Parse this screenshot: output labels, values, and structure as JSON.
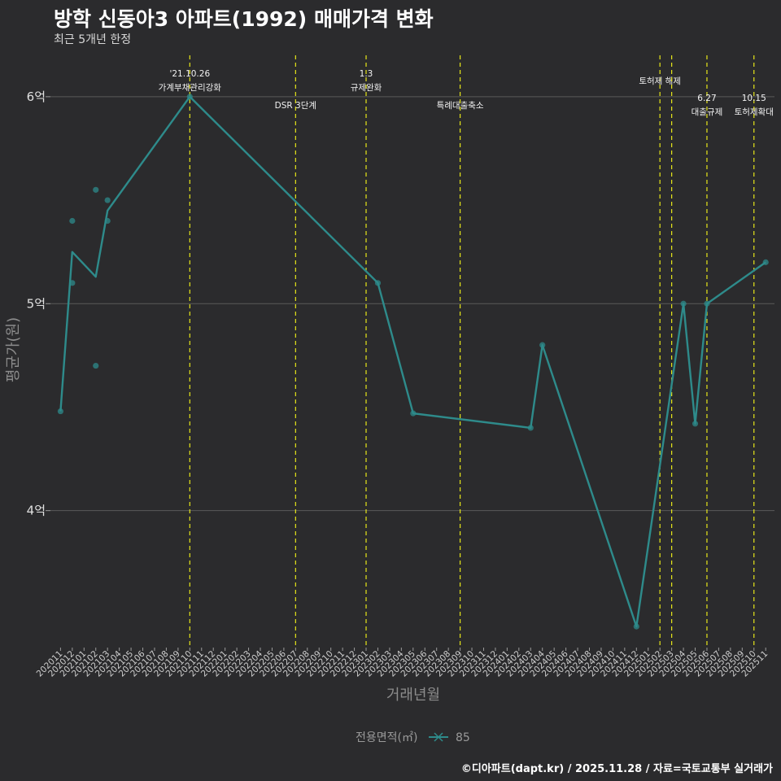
{
  "header": {
    "title": "방학 신동아3 아파트(1992) 매매가격 변화",
    "subtitle": "최근 5개년 한정"
  },
  "footer": {
    "caption": "©디아파트(dapt.kr) / 2025.11.28 / 자료=국토교통부 실거래가"
  },
  "colors": {
    "background": "#2b2b2d",
    "grid": "#5a5a5a",
    "series": "#2e8b8b",
    "event_line": "#e6e619"
  },
  "chart_data": {
    "type": "line",
    "title": "방학 신동아3 아파트(1992) 매매가격 변화",
    "subtitle": "최근 5개년 한정",
    "xlabel": "거래년월",
    "ylabel": "평균가(원)",
    "x_categories": [
      "202011",
      "202012",
      "202101",
      "202102",
      "202103",
      "202104",
      "202105",
      "202106",
      "202107",
      "202108",
      "202109",
      "202110",
      "202111",
      "202112",
      "202201",
      "202202",
      "202203",
      "202204",
      "202205",
      "202206",
      "202207",
      "202208",
      "202209",
      "202210",
      "202211",
      "202212",
      "202301",
      "202302",
      "202303",
      "202304",
      "202305",
      "202306",
      "202307",
      "202308",
      "202309",
      "202310",
      "202311",
      "202312",
      "202401",
      "202402",
      "202403",
      "202404",
      "202405",
      "202406",
      "202407",
      "202408",
      "202409",
      "202410",
      "202411",
      "202412",
      "202501",
      "202502",
      "202503",
      "202504",
      "202505",
      "202506",
      "202507",
      "202508",
      "202509",
      "202510",
      "202511"
    ],
    "y_ticks": [
      {
        "value": 400000000,
        "label": "4억"
      },
      {
        "value": 500000000,
        "label": "5억"
      },
      {
        "value": 600000000,
        "label": "6억"
      }
    ],
    "ylim": [
      335000000,
      620000000
    ],
    "legend": {
      "title": "전용면적(㎡)",
      "entries": [
        "85"
      ]
    },
    "series": [
      {
        "name": "85",
        "line": [
          {
            "x": "202011",
            "y": 448000000
          },
          {
            "x": "202012",
            "y": 525000000
          },
          {
            "x": "202102",
            "y": 513000000
          },
          {
            "x": "202103",
            "y": 545000000
          },
          {
            "x": "202110",
            "y": 600000000
          },
          {
            "x": "202302",
            "y": 510000000
          },
          {
            "x": "202305",
            "y": 447000000
          },
          {
            "x": "202403",
            "y": 440000000
          },
          {
            "x": "202404",
            "y": 480000000
          },
          {
            "x": "202412",
            "y": 344000000
          },
          {
            "x": "202504",
            "y": 500000000
          },
          {
            "x": "202505",
            "y": 442000000
          },
          {
            "x": "202506",
            "y": 500000000
          },
          {
            "x": "202511",
            "y": 520000000
          }
        ],
        "points": [
          {
            "x": "202011",
            "y": 448000000
          },
          {
            "x": "202012",
            "y": 540000000
          },
          {
            "x": "202012",
            "y": 510000000
          },
          {
            "x": "202102",
            "y": 555000000
          },
          {
            "x": "202102",
            "y": 470000000
          },
          {
            "x": "202103",
            "y": 550000000
          },
          {
            "x": "202103",
            "y": 540000000
          },
          {
            "x": "202110",
            "y": 600000000
          },
          {
            "x": "202302",
            "y": 510000000
          },
          {
            "x": "202305",
            "y": 447000000
          },
          {
            "x": "202403",
            "y": 440000000
          },
          {
            "x": "202404",
            "y": 480000000
          },
          {
            "x": "202412",
            "y": 344000000
          },
          {
            "x": "202504",
            "y": 500000000
          },
          {
            "x": "202505",
            "y": 442000000
          },
          {
            "x": "202506",
            "y": 500000000
          },
          {
            "x": "202511",
            "y": 520000000
          }
        ]
      }
    ],
    "events": [
      {
        "x": "202110",
        "date": "'21.10.26",
        "label": "가계부채관리강화",
        "row": 0
      },
      {
        "x": "202207",
        "date": "",
        "label": "DSR 3단계",
        "row": 2
      },
      {
        "x": "202301",
        "date": "1.3",
        "label": "규제완화",
        "row": 0
      },
      {
        "x": "202309",
        "date": "",
        "label": "특례대출축소",
        "row": 2
      },
      {
        "x": "202502",
        "date": "",
        "label": "토허제 해제",
        "row": 1
      },
      {
        "x": "202503",
        "date": "",
        "label": "",
        "row": 1
      },
      {
        "x": "202506",
        "date": "6.27",
        "label": "대출규제",
        "row": 3
      },
      {
        "x": "202510",
        "date": "10.15",
        "label": "토허제확대",
        "row": 3
      }
    ]
  }
}
